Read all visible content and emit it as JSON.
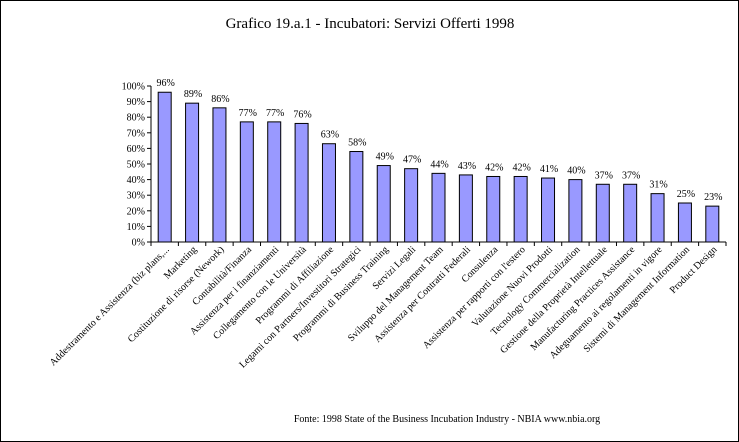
{
  "chart_data": {
    "type": "bar",
    "title": "Grafico 19.a.1 - Incubatori: Servizi Offerti 1998",
    "source": "Fonte: 1998 State of the Business Incubation Industry - NBIA www.nbia.org",
    "categories": [
      "Addestramento e Assistenza (biz plans,...",
      "Marketing",
      "Costituzione di risorse (Nework)",
      "Contabilità/Finanza",
      "Assistenza per i finanziamenti",
      "Collegamento con le Università",
      "Programmi di Affiliazione",
      "Legami con Partners/Investitori Strategici",
      "Programmi di Business Training",
      "Servizi Legali",
      "Sviluppo del Management Team",
      "Assistenza per Contratti Federali",
      "Consulenza",
      "Assistenza per rapporti con l'estero",
      "Valutazione Nuovi Prodotti",
      "Tecnology Commercialization",
      "Gestione della Proprietà Intellettuale",
      "Manufacturing Practices Assistance",
      "Adeguamento ai regolamenti in vigore",
      "Sistemi di Management Information",
      "Product Design"
    ],
    "values": [
      96,
      89,
      86,
      77,
      77,
      76,
      63,
      58,
      49,
      47,
      44,
      43,
      42,
      42,
      41,
      40,
      37,
      37,
      31,
      25,
      23
    ],
    "value_labels": [
      "96%",
      "89%",
      "86%",
      "77%",
      "77%",
      "76%",
      "63%",
      "58%",
      "49%",
      "47%",
      "44%",
      "43%",
      "42%",
      "42%",
      "41%",
      "40%",
      "37%",
      "37%",
      "31%",
      "25%",
      "23%"
    ],
    "yticks": [
      "0%",
      "10%",
      "20%",
      "30%",
      "40%",
      "50%",
      "60%",
      "70%",
      "80%",
      "90%",
      "100%"
    ],
    "ylim": [
      0,
      100
    ],
    "xlabel": "",
    "ylabel": "",
    "grid": false,
    "legend": "none",
    "bar_color": "#9999ff",
    "bar_outline": "#000000"
  }
}
